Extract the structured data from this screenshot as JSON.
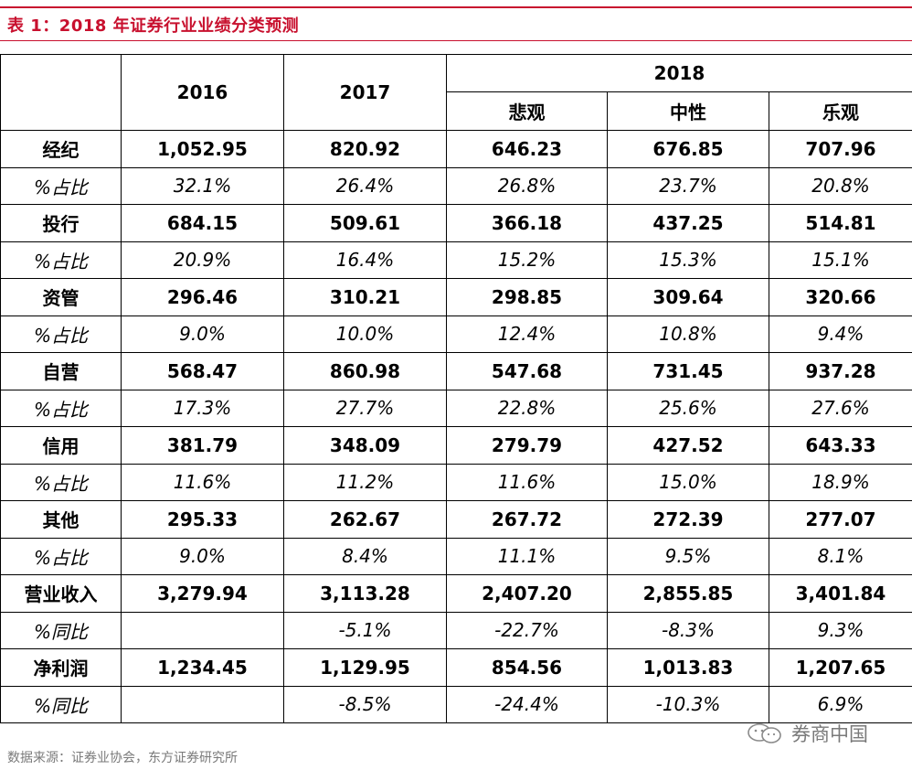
{
  "title": "表 1：2018 年证券行业业绩分类预测",
  "header": {
    "col_2016": "2016",
    "col_2017": "2017",
    "col_2018": "2018",
    "sub_cols": [
      "悲观",
      "中性",
      "乐观"
    ]
  },
  "rows": [
    {
      "label": "经纪",
      "v": [
        "1,052.95",
        "820.92",
        "646.23",
        "676.85",
        "707.96"
      ]
    },
    {
      "label": "%占比",
      "v": [
        "32.1%",
        "26.4%",
        "26.8%",
        "23.7%",
        "20.8%"
      ]
    },
    {
      "label": "投行",
      "v": [
        "684.15",
        "509.61",
        "366.18",
        "437.25",
        "514.81"
      ]
    },
    {
      "label": "%占比",
      "v": [
        "20.9%",
        "16.4%",
        "15.2%",
        "15.3%",
        "15.1%"
      ]
    },
    {
      "label": "资管",
      "v": [
        "296.46",
        "310.21",
        "298.85",
        "309.64",
        "320.66"
      ]
    },
    {
      "label": "%占比",
      "v": [
        "9.0%",
        "10.0%",
        "12.4%",
        "10.8%",
        "9.4%"
      ]
    },
    {
      "label": "自营",
      "v": [
        "568.47",
        "860.98",
        "547.68",
        "731.45",
        "937.28"
      ]
    },
    {
      "label": "%占比",
      "v": [
        "17.3%",
        "27.7%",
        "22.8%",
        "25.6%",
        "27.6%"
      ]
    },
    {
      "label": "信用",
      "v": [
        "381.79",
        "348.09",
        "279.79",
        "427.52",
        "643.33"
      ]
    },
    {
      "label": "%占比",
      "v": [
        "11.6%",
        "11.2%",
        "11.6%",
        "15.0%",
        "18.9%"
      ]
    },
    {
      "label": "其他",
      "v": [
        "295.33",
        "262.67",
        "267.72",
        "272.39",
        "277.07"
      ]
    },
    {
      "label": "%占比",
      "v": [
        "9.0%",
        "8.4%",
        "11.1%",
        "9.5%",
        "8.1%"
      ]
    },
    {
      "label": "营业收入",
      "v": [
        "3,279.94",
        "3,113.28",
        "2,407.20",
        "2,855.85",
        "3,401.84"
      ]
    },
    {
      "label": "%同比",
      "v": [
        "",
        "-5.1%",
        "-22.7%",
        "-8.3%",
        "9.3%"
      ]
    },
    {
      "label": "净利润",
      "v": [
        "1,234.45",
        "1,129.95",
        "854.56",
        "1,013.83",
        "1,207.65"
      ]
    },
    {
      "label": "%同比",
      "v": [
        "",
        "-8.5%",
        "-24.4%",
        "-10.3%",
        "6.9%"
      ]
    }
  ],
  "footer": "数据来源：证券业协会，东方证券研究所",
  "watermark": {
    "text": "券商中国",
    "icon": "wechat-icon"
  },
  "colors": {
    "accent": "#c8102e",
    "muted": "#7a7a7a"
  }
}
